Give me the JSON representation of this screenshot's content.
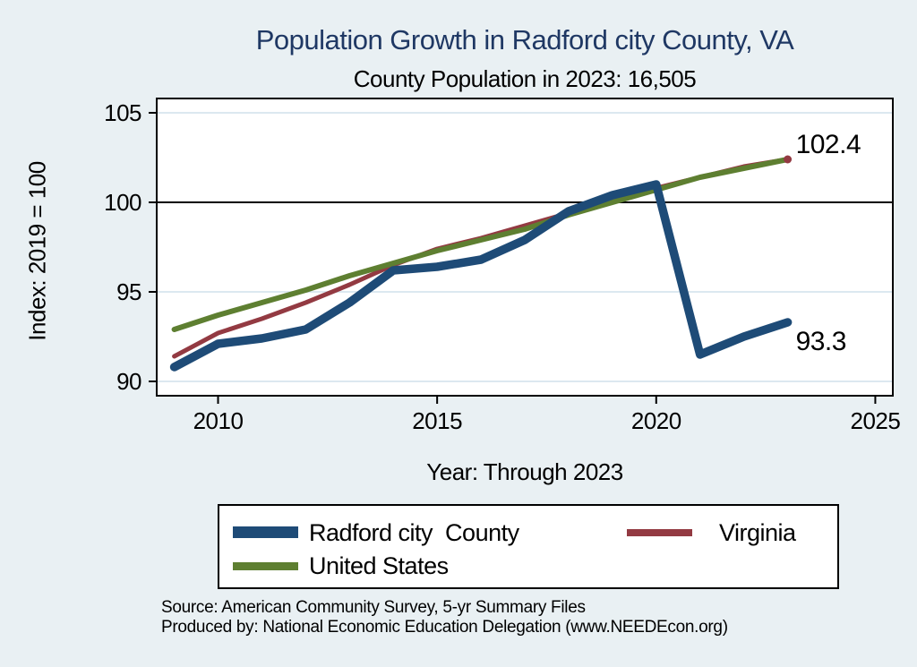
{
  "title": "Population Growth in Radford city County, VA",
  "subtitle": "County Population in 2023: 16,505",
  "colors": {
    "background": "#e9f0f3",
    "plot_background": "#ffffff",
    "title_text": "#1f3864",
    "gridline": "#dce8f0",
    "axis": "#000000",
    "reference_line": "#000000"
  },
  "chart_data": {
    "type": "line",
    "title": "Population Growth in Radford city County, VA",
    "subtitle": "County Population in 2023: 16,505",
    "xlabel": "Year: Through 2023",
    "ylabel": "Index: 2019 = 100",
    "x": [
      2009,
      2010,
      2011,
      2012,
      2013,
      2014,
      2015,
      2016,
      2017,
      2018,
      2019,
      2020,
      2021,
      2022,
      2023
    ],
    "series": [
      {
        "name": "Radford city  County",
        "color": "#1e4b77",
        "values": [
          90.8,
          92.1,
          92.4,
          92.9,
          94.4,
          96.2,
          96.4,
          96.8,
          97.9,
          99.5,
          100.4,
          101.0,
          91.5,
          92.5,
          93.3
        ]
      },
      {
        "name": "Virginia",
        "color": "#933a42",
        "values": [
          91.4,
          92.7,
          93.5,
          94.4,
          95.4,
          96.5,
          97.4,
          98.0,
          98.7,
          99.4,
          100.1,
          100.8,
          101.4,
          102.0,
          102.4
        ]
      },
      {
        "name": "United States",
        "color": "#5e7f31",
        "values": [
          92.9,
          93.7,
          94.4,
          95.1,
          95.9,
          96.6,
          97.3,
          97.9,
          98.5,
          99.3,
          100.0,
          100.7,
          101.4,
          101.9,
          102.4
        ]
      }
    ],
    "xlim": [
      2008.6,
      2025.4
    ],
    "ylim": [
      89.2,
      105.8
    ],
    "x_ticks": [
      "2010",
      "2015",
      "2020",
      "2025"
    ],
    "y_ticks": [
      "90",
      "95",
      "100",
      "105"
    ],
    "reference_line_y": 100,
    "grid": "horizontal",
    "legend_position": "bottom",
    "end_labels": [
      {
        "text": "102.4",
        "value": 102.4,
        "x": 2023,
        "position": "above"
      },
      {
        "text": "93.3",
        "value": 93.3,
        "x": 2023,
        "position": "below"
      }
    ]
  },
  "source_line1": "Source: American Community Survey, 5-yr Summary Files",
  "source_line2": "Produced by: National Economic Education Delegation (www.NEEDEcon.org)"
}
